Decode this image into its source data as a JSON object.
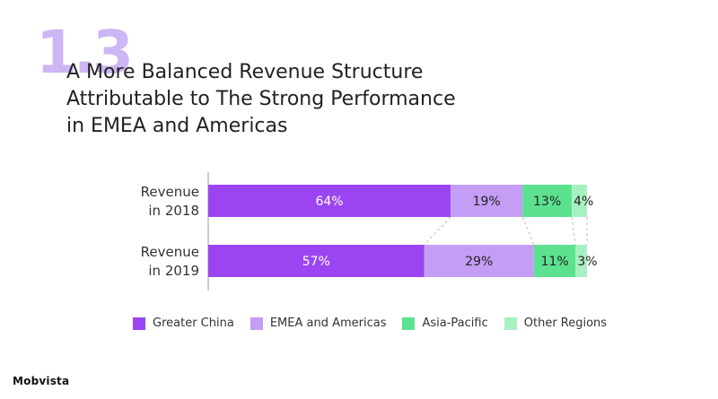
{
  "section_number": "1.3",
  "title_lines": [
    "A More Balanced Revenue Structure",
    "Attributable to The Strong Performance",
    "in EMEA and Americas"
  ],
  "brand": "Mobvista",
  "colors": {
    "greater_china": "#9b45f2",
    "emea_americas": "#c49ef5",
    "asia_pacific": "#5ce28f",
    "other_regions": "#a8f0c2",
    "connector": "#bbbbbb"
  },
  "chart_data": {
    "type": "bar",
    "orientation": "horizontal",
    "stacked": true,
    "categories": [
      [
        "Revenue",
        "in 2018"
      ],
      [
        "Revenue",
        "in 2019"
      ]
    ],
    "series": [
      {
        "name": "Greater China",
        "values": [
          64,
          57
        ],
        "labels": [
          "64%",
          "57%"
        ],
        "color": "#9b45f2"
      },
      {
        "name": "EMEA and Americas",
        "values": [
          19,
          29
        ],
        "labels": [
          "19%",
          "29%"
        ],
        "color": "#c49ef5"
      },
      {
        "name": "Asia-Pacific",
        "values": [
          13,
          11
        ],
        "labels": [
          "13%",
          "11%"
        ],
        "color": "#5ce28f"
      },
      {
        "name": "Other Regions",
        "values": [
          4,
          3
        ],
        "labels": [
          "4%",
          "3%"
        ],
        "color": "#a8f0c2"
      }
    ],
    "unit": "%",
    "legend_position": "bottom",
    "grid": false,
    "connector_lines": true
  },
  "legend": [
    {
      "label": "Greater China",
      "color": "#9b45f2"
    },
    {
      "label": "EMEA and Americas",
      "color": "#c49ef5"
    },
    {
      "label": "Asia-Pacific",
      "color": "#5ce28f"
    },
    {
      "label": "Other Regions",
      "color": "#a8f0c2"
    }
  ]
}
